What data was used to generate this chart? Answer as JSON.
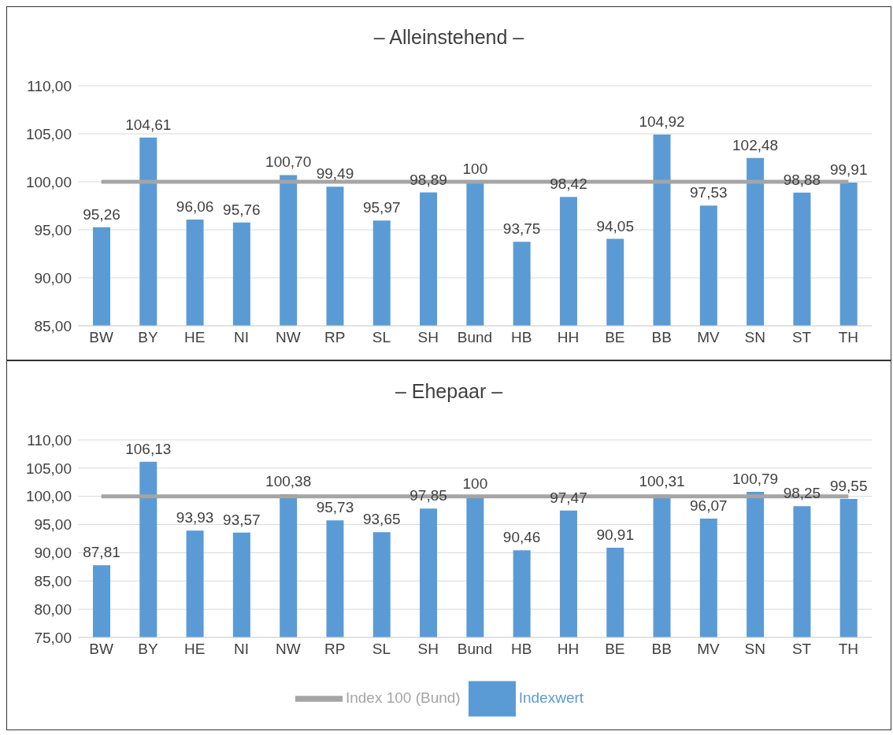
{
  "chart_data": [
    {
      "type": "bar",
      "title": "– Alleinstehend –",
      "categories": [
        "BW",
        "BY",
        "HE",
        "NI",
        "NW",
        "RP",
        "SL",
        "SH",
        "Bund",
        "HB",
        "HH",
        "BE",
        "BB",
        "MV",
        "SN",
        "ST",
        "TH"
      ],
      "ylim": [
        85,
        110
      ],
      "yticks": [
        {
          "value": 85,
          "label": "85,00"
        },
        {
          "value": 90,
          "label": "90,00"
        },
        {
          "value": 95,
          "label": "95,00"
        },
        {
          "value": 100,
          "label": "100,00"
        },
        {
          "value": 105,
          "label": "105,00"
        },
        {
          "value": 110,
          "label": "110,00"
        }
      ],
      "grid": "y",
      "legend": false,
      "series": [
        {
          "color": "#5b9bd5",
          "values": [
            95.26,
            104.61,
            96.06,
            95.76,
            100.7,
            99.49,
            95.97,
            98.89,
            100,
            93.75,
            98.42,
            94.05,
            104.92,
            97.53,
            102.48,
            98.88,
            99.91
          ],
          "value_labels": [
            "95,26",
            "104,61",
            "96,06",
            "95,76",
            "100,70",
            "99,49",
            "95,97",
            "98,89",
            "100",
            "93,75",
            "98,42",
            "94,05",
            "104,92",
            "97,53",
            "102,48",
            "98,88",
            "99,91"
          ]
        },
        {
          "type": "line",
          "color": "#a5a5a5",
          "values": [
            100,
            100,
            100,
            100,
            100,
            100,
            100,
            100,
            100,
            100,
            100,
            100,
            100,
            100,
            100,
            100,
            100
          ]
        }
      ]
    },
    {
      "type": "bar",
      "title": "– Ehepaar –",
      "categories": [
        "BW",
        "BY",
        "HE",
        "NI",
        "NW",
        "RP",
        "SL",
        "SH",
        "Bund",
        "HB",
        "HH",
        "BE",
        "BB",
        "MV",
        "SN",
        "ST",
        "TH"
      ],
      "ylim": [
        75,
        110
      ],
      "yticks": [
        {
          "value": 75,
          "label": "75,00"
        },
        {
          "value": 80,
          "label": "80,00"
        },
        {
          "value": 85,
          "label": "85,00"
        },
        {
          "value": 90,
          "label": "90,00"
        },
        {
          "value": 95,
          "label": "95,00"
        },
        {
          "value": 100,
          "label": "100,00"
        },
        {
          "value": 105,
          "label": "105,00"
        },
        {
          "value": 110,
          "label": "110,00"
        }
      ],
      "grid": "y",
      "legend": "bottom",
      "series": [
        {
          "name": "Indexwert",
          "color": "#5b9bd5",
          "values": [
            87.81,
            106.13,
            93.93,
            93.57,
            100.38,
            95.73,
            93.65,
            97.85,
            100,
            90.46,
            97.47,
            90.91,
            100.31,
            96.07,
            100.79,
            98.25,
            99.55
          ],
          "value_labels": [
            "87,81",
            "106,13",
            "93,93",
            "93,57",
            "100,38",
            "95,73",
            "93,65",
            "97,85",
            "100",
            "90,46",
            "97,47",
            "90,91",
            "100,31",
            "96,07",
            "100,79",
            "98,25",
            "99,55"
          ]
        },
        {
          "type": "line",
          "name": "Index 100 (Bund)",
          "color": "#a5a5a5",
          "values": [
            100,
            100,
            100,
            100,
            100,
            100,
            100,
            100,
            100,
            100,
            100,
            100,
            100,
            100,
            100,
            100,
            100
          ]
        }
      ]
    }
  ]
}
